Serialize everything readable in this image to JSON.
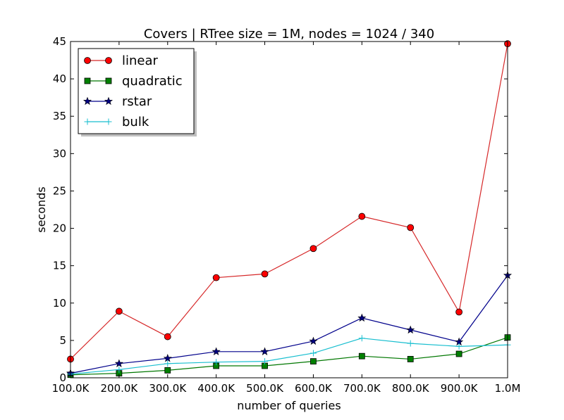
{
  "chart_data": {
    "type": "line",
    "title": "Covers | RTree size = 1M, nodes = 1024 / 340",
    "xlabel": "number of queries",
    "ylabel": "seconds",
    "categories": [
      "100.0K",
      "200.0K",
      "300.0K",
      "400.0K",
      "500.0K",
      "600.0K",
      "700.0K",
      "800.0K",
      "900.0K",
      "1.0M"
    ],
    "x": [
      100000,
      200000,
      300000,
      400000,
      500000,
      600000,
      700000,
      800000,
      900000,
      1000000
    ],
    "xlim": [
      100000,
      1000000
    ],
    "ylim": [
      0,
      45
    ],
    "yticks": [
      0,
      5,
      10,
      15,
      20,
      25,
      30,
      35,
      40,
      45
    ],
    "grid": false,
    "legend_position": "top-left",
    "series": [
      {
        "name": "linear",
        "color": "#d62728",
        "marker": "circle",
        "marker_color": "#ff0000",
        "values": [
          2.5,
          8.9,
          5.5,
          13.4,
          13.9,
          17.3,
          21.6,
          20.1,
          8.8,
          44.7
        ]
      },
      {
        "name": "quadratic",
        "color": "#007700",
        "marker": "square",
        "marker_color": "#008000",
        "values": [
          0.4,
          0.6,
          1.0,
          1.6,
          1.6,
          2.2,
          2.9,
          2.5,
          3.2,
          5.4
        ]
      },
      {
        "name": "rstar",
        "color": "#00008b",
        "marker": "star",
        "marker_color": "#000080",
        "values": [
          0.6,
          1.9,
          2.6,
          3.5,
          3.5,
          4.9,
          8.0,
          6.4,
          4.8,
          13.7
        ]
      },
      {
        "name": "bulk",
        "color": "#17becf",
        "marker": "plus",
        "marker_color": "#17becf",
        "values": [
          0.5,
          1.1,
          1.9,
          2.1,
          2.2,
          3.3,
          5.3,
          4.6,
          4.2,
          4.4
        ]
      }
    ]
  }
}
